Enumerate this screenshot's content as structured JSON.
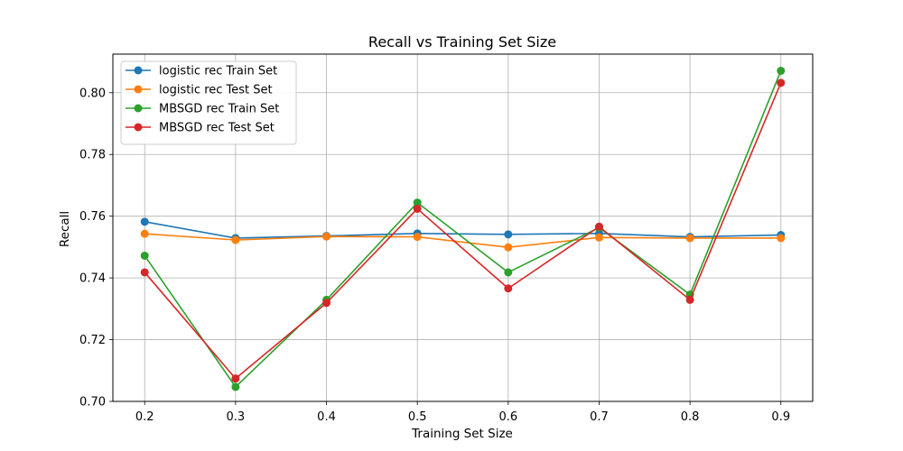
{
  "chart_data": {
    "type": "line",
    "title": "Recall vs Training Set Size",
    "xlabel": "Training Set Size",
    "ylabel": "Recall",
    "x": [
      0.2,
      0.3,
      0.4,
      0.5,
      0.6,
      0.7,
      0.8,
      0.9
    ],
    "x_ticks": [
      "0.2",
      "0.3",
      "0.4",
      "0.5",
      "0.6",
      "0.7",
      "0.8",
      "0.9"
    ],
    "y_ticks": [
      "0.70",
      "0.72",
      "0.74",
      "0.76",
      "0.78",
      "0.80"
    ],
    "xlim": [
      0.165,
      0.935
    ],
    "ylim": [
      0.7,
      0.8125
    ],
    "grid": true,
    "legend_position": "top-left",
    "series": [
      {
        "name": "logistic rec Train Set",
        "color": "#1f77b4",
        "values": [
          0.7582,
          0.7529,
          0.7536,
          0.7544,
          0.7541,
          0.7544,
          0.7533,
          0.7539
        ]
      },
      {
        "name": "logistic rec Test Set",
        "color": "#ff7f0e",
        "values": [
          0.7543,
          0.7523,
          0.7534,
          0.7533,
          0.7499,
          0.7531,
          0.7529,
          0.7529
        ]
      },
      {
        "name": "MBSGD rec Train Set",
        "color": "#2ca02c",
        "values": [
          0.7472,
          0.7047,
          0.7329,
          0.7644,
          0.7418,
          0.7563,
          0.7346,
          0.8071
        ]
      },
      {
        "name": "MBSGD rec Test Set",
        "color": "#d62728",
        "values": [
          0.7418,
          0.7074,
          0.7319,
          0.7624,
          0.7366,
          0.7566,
          0.7329,
          0.8032
        ]
      }
    ]
  }
}
